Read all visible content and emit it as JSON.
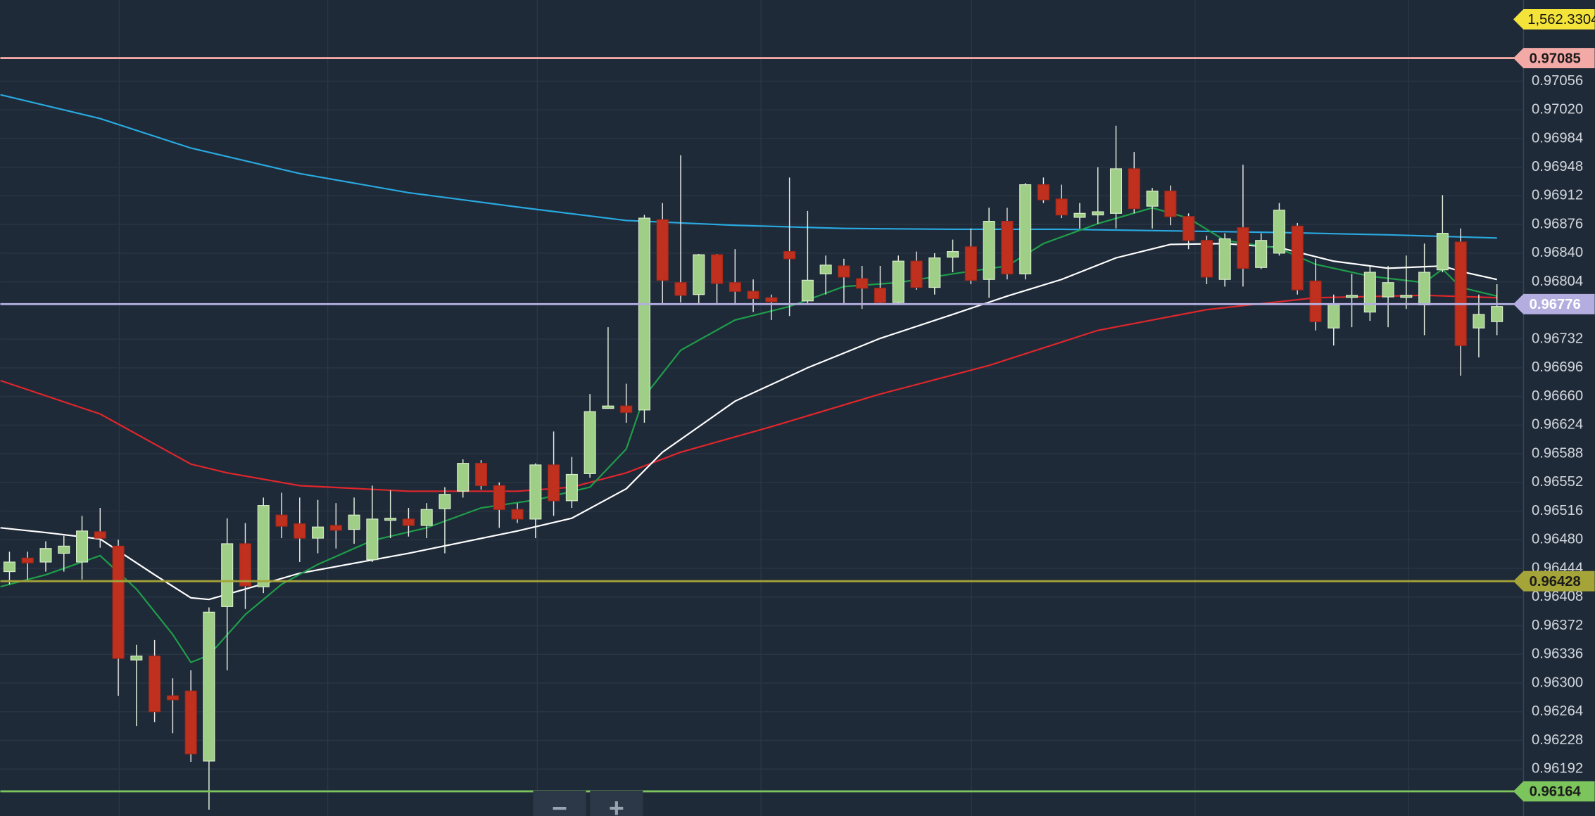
{
  "chart_data": {
    "type": "candlestick",
    "ylim": [
      0.96133,
      0.97158
    ],
    "yticks": [
      0.97056,
      {
        "value": 0.9702,
        "label": "0.97020"
      },
      0.96984,
      0.96948,
      0.96912,
      0.96876,
      {
        "value": 0.9684,
        "label": "0.96840"
      },
      0.96804,
      0.96732,
      0.96696,
      {
        "value": 0.9666,
        "label": "0.96660"
      },
      0.96624,
      0.96588,
      0.96552,
      0.96516,
      {
        "value": 0.9648,
        "label": "0.96480"
      },
      0.96444,
      0.96408,
      0.96372,
      0.96336,
      {
        "value": 0.963,
        "label": "0.96300"
      },
      0.96264,
      0.96228,
      0.96192
    ],
    "grid": true,
    "up_color": "#9fcf86",
    "down_color": "#c0301f",
    "open": [
      0.9644,
      0.96457,
      0.96452,
      0.96463,
      0.96452,
      0.9649,
      0.96472,
      0.96329,
      0.96334,
      0.96284,
      0.9629,
      0.96202,
      0.96396,
      0.96475,
      0.96421,
      0.96511,
      0.965,
      0.96482,
      0.96498,
      0.96493,
      0.96455,
      0.96505,
      0.96506,
      0.96498,
      0.96519,
      0.96541,
      0.96576,
      0.96548,
      0.96518,
      0.96506,
      0.96574,
      0.96529,
      0.96563,
      0.96645,
      0.96648,
      0.96643,
      0.96882,
      0.96803,
      0.96788,
      0.96838,
      0.96803,
      0.96792,
      0.96784,
      0.96842,
      0.9678,
      0.96814,
      0.96824,
      0.96808,
      0.96796,
      0.96778,
      0.9683,
      0.96797,
      0.96835,
      0.96848,
      0.96807,
      0.9688,
      0.96814,
      0.96926,
      0.96908,
      0.96885,
      0.96888,
      0.9689,
      0.96946,
      0.96899,
      0.96918,
      0.96886,
      0.96856,
      0.96807,
      0.96872,
      0.96822,
      0.9684,
      0.96874,
      0.96805,
      0.96746,
      0.96785,
      0.96766,
      0.96785,
      0.96786,
      0.96775,
      0.96819,
      0.96854,
      0.96746,
      0.96754
    ],
    "high": [
      0.96465,
      0.96465,
      0.96478,
      0.96485,
      0.9651,
      0.9652,
      0.9648,
      0.96348,
      0.96354,
      0.96306,
      0.96316,
      0.96395,
      0.96507,
      0.96501,
      0.96533,
      0.96539,
      0.96533,
      0.9653,
      0.96526,
      0.96533,
      0.96548,
      0.96542,
      0.9652,
      0.96526,
      0.96546,
      0.96581,
      0.9658,
      0.96552,
      0.96526,
      0.96576,
      0.96616,
      0.96584,
      0.96663,
      0.96747,
      0.96676,
      0.96888,
      0.96903,
      0.96963,
      0.96839,
      0.96839,
      0.96845,
      0.96807,
      0.96788,
      0.96935,
      0.96893,
      0.96837,
      0.96833,
      0.96824,
      0.96824,
      0.96837,
      0.96842,
      0.9684,
      0.96857,
      0.96871,
      0.96897,
      0.96897,
      0.96928,
      0.96935,
      0.96926,
      0.96903,
      0.96948,
      0.97,
      0.96967,
      0.96922,
      0.96925,
      0.9689,
      0.96862,
      0.96865,
      0.96951,
      0.96865,
      0.96903,
      0.96878,
      0.96833,
      0.96788,
      0.96814,
      0.96824,
      0.96824,
      0.96837,
      0.96852,
      0.96913,
      0.96871,
      0.96788,
      0.96801
    ],
    "low": [
      0.96424,
      0.9643,
      0.9644,
      0.9644,
      0.9643,
      0.9647,
      0.96284,
      0.96246,
      0.96251,
      0.96237,
      0.96201,
      0.96141,
      0.96316,
      0.96393,
      0.96413,
      0.96482,
      0.96452,
      0.96463,
      0.96469,
      0.96475,
      0.96452,
      0.96482,
      0.96484,
      0.96482,
      0.96463,
      0.96533,
      0.96543,
      0.96495,
      0.96501,
      0.96482,
      0.9651,
      0.9652,
      0.96558,
      0.96645,
      0.96627,
      0.96627,
      0.96775,
      0.96778,
      0.96775,
      0.96775,
      0.96775,
      0.96766,
      0.96756,
      0.96761,
      0.96775,
      0.96788,
      0.96775,
      0.9677,
      0.96775,
      0.96775,
      0.96794,
      0.96788,
      0.96816,
      0.96801,
      0.96784,
      0.96807,
      0.96807,
      0.96903,
      0.96884,
      0.96871,
      0.96877,
      0.96871,
      0.9689,
      0.96871,
      0.96875,
      0.96845,
      0.96801,
      0.96798,
      0.96798,
      0.9682,
      0.96837,
      0.96788,
      0.96743,
      0.96724,
      0.96747,
      0.96755,
      0.96747,
      0.9677,
      0.96737,
      0.96816,
      0.96686,
      0.96709,
      0.96737
    ],
    "close": [
      0.96452,
      0.96451,
      0.96469,
      0.96472,
      0.96491,
      0.96482,
      0.96331,
      0.96334,
      0.96264,
      0.96279,
      0.96211,
      0.96389,
      0.96475,
      0.96422,
      0.96523,
      0.96497,
      0.96482,
      0.96496,
      0.96492,
      0.96511,
      0.96506,
      0.96507,
      0.96498,
      0.96518,
      0.96537,
      0.96576,
      0.96548,
      0.96518,
      0.96506,
      0.96574,
      0.96529,
      0.96562,
      0.96641,
      0.96648,
      0.9664,
      0.96884,
      0.96806,
      0.96787,
      0.96838,
      0.96802,
      0.96792,
      0.96783,
      0.96779,
      0.96833,
      0.96806,
      0.96825,
      0.9681,
      0.96796,
      0.96778,
      0.9683,
      0.96797,
      0.96834,
      0.96842,
      0.96806,
      0.9688,
      0.96814,
      0.96926,
      0.96907,
      0.96888,
      0.9689,
      0.96892,
      0.96946,
      0.96896,
      0.96918,
      0.96886,
      0.96856,
      0.9681,
      0.96858,
      0.96821,
      0.96856,
      0.96894,
      0.96794,
      0.96754,
      0.96775,
      0.96787,
      0.96816,
      0.96803,
      0.96787,
      0.96816,
      0.96865,
      0.96724,
      0.96763,
      0.96773
    ],
    "lines": [
      {
        "color": "#29a9e0",
        "x": [
          -0.5,
          5,
          10,
          16,
          22,
          28,
          34,
          40,
          46,
          52,
          58,
          64,
          70,
          76,
          82
        ],
        "values": [
          0.97039,
          0.97009,
          0.96972,
          0.9694,
          0.96916,
          0.96898,
          0.96881,
          0.96875,
          0.96871,
          0.9687,
          0.9687,
          0.96868,
          0.96866,
          0.96863,
          0.96859
        ]
      },
      {
        "color": "#e0262b",
        "x": [
          -0.5,
          5,
          10,
          12,
          16,
          22,
          28,
          31,
          34,
          37,
          42,
          48,
          54,
          60,
          66,
          72,
          78,
          82
        ],
        "values": [
          0.9668,
          0.96638,
          0.96575,
          0.96564,
          0.96548,
          0.96541,
          0.96541,
          0.96546,
          0.96564,
          0.9659,
          0.96622,
          0.96663,
          0.96699,
          0.96743,
          0.96769,
          0.96784,
          0.96787,
          0.96784
        ]
      },
      {
        "color": "#ffffff",
        "x": [
          -0.5,
          2,
          5,
          8,
          10,
          11,
          13,
          16,
          22,
          28,
          31,
          34,
          36,
          40,
          44,
          48,
          52,
          55,
          58,
          61,
          64,
          67,
          70,
          73,
          76,
          79,
          80,
          82
        ],
        "values": [
          0.96495,
          0.96489,
          0.96481,
          0.96436,
          0.96407,
          0.96405,
          0.96418,
          0.96438,
          0.96463,
          0.96491,
          0.96507,
          0.96544,
          0.9659,
          0.96654,
          0.96696,
          0.96733,
          0.96763,
          0.96786,
          0.96807,
          0.96834,
          0.96851,
          0.96852,
          0.96847,
          0.9683,
          0.96821,
          0.96824,
          0.96817,
          0.96807
        ]
      },
      {
        "color": "#1e9e4a",
        "x": [
          -0.5,
          2,
          5,
          7,
          9,
          10,
          11,
          13,
          15,
          17,
          20,
          23,
          26,
          29,
          32,
          34,
          35,
          37,
          40,
          43,
          46,
          49,
          52,
          55,
          57,
          60,
          63,
          65,
          67,
          70,
          72,
          75,
          78,
          79,
          80,
          82
        ],
        "values": [
          0.96421,
          0.96436,
          0.9646,
          0.96418,
          0.96361,
          0.96326,
          0.96335,
          0.96386,
          0.96424,
          0.96449,
          0.96479,
          0.96495,
          0.9652,
          0.9653,
          0.96546,
          0.96594,
          0.9666,
          0.96718,
          0.96756,
          0.96773,
          0.96798,
          0.96803,
          0.96814,
          0.96824,
          0.96852,
          0.96877,
          0.96897,
          0.96884,
          0.96856,
          0.96846,
          0.96826,
          0.96811,
          0.96803,
          0.9682,
          0.96797,
          0.96786
        ]
      }
    ],
    "levels": [
      {
        "value": 0.97085,
        "color": "#f3a9a6"
      },
      {
        "value": 0.96776,
        "color": "#b4aee0"
      },
      {
        "value": 0.96428,
        "color": "#a5a438"
      },
      {
        "value": 0.96164,
        "color": "#7cc45c"
      }
    ],
    "badge": {
      "label": "1,562.3304",
      "color": "#f4e43a"
    }
  },
  "controls": {
    "zoom_out": "−",
    "zoom_in": "+"
  }
}
